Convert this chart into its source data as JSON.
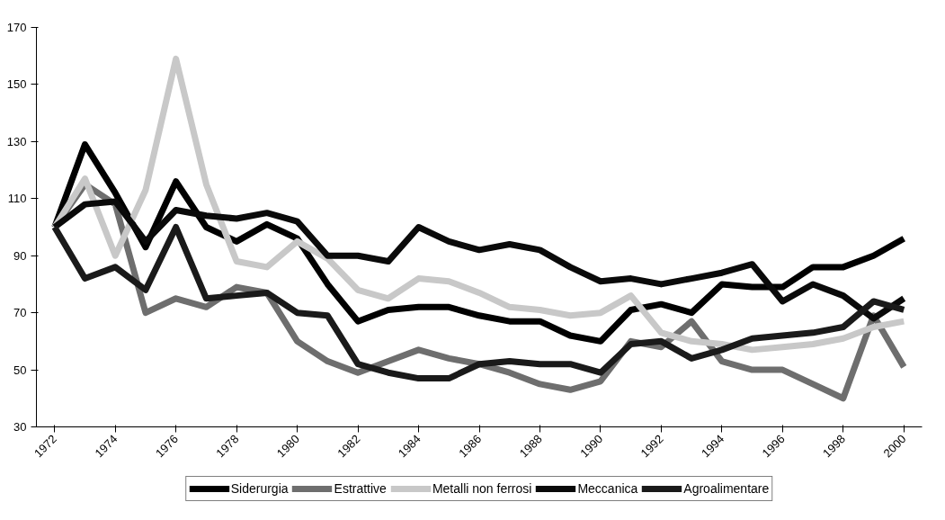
{
  "chart_data": {
    "type": "line",
    "x": [
      1972,
      1973,
      1974,
      1975,
      1976,
      1977,
      1978,
      1979,
      1980,
      1981,
      1982,
      1983,
      1984,
      1985,
      1986,
      1987,
      1988,
      1989,
      1990,
      1991,
      1992,
      1993,
      1994,
      1995,
      1996,
      1997,
      1998,
      1999,
      2000
    ],
    "series": [
      {
        "name": "Siderurgia",
        "color": "#000000",
        "values": [
          100,
          129,
          112,
          93,
          116,
          100,
          95,
          101,
          96,
          80,
          67,
          71,
          72,
          72,
          69,
          67,
          67,
          62,
          60,
          71,
          73,
          70,
          80,
          79,
          79,
          86,
          86,
          90,
          96
        ]
      },
      {
        "name": "Estrattive",
        "color": "#6e6e6e",
        "values": [
          100,
          115,
          108,
          70,
          75,
          72,
          79,
          77,
          60,
          53,
          49,
          53,
          57,
          54,
          52,
          49,
          45,
          43,
          46,
          60,
          58,
          67,
          53,
          50,
          50,
          45,
          40,
          69,
          51
        ]
      },
      {
        "name": "Metalli non ferrosi",
        "color": "#c8c8c8",
        "values": [
          100,
          117,
          90,
          113,
          159,
          115,
          88,
          86,
          95,
          89,
          78,
          75,
          82,
          81,
          77,
          72,
          71,
          69,
          70,
          76,
          63,
          60,
          59,
          57,
          58,
          59,
          61,
          65,
          67
        ]
      },
      {
        "name": "Meccanica",
        "color": "#0a0a0a",
        "values": [
          100,
          108,
          109,
          95,
          106,
          104,
          103,
          105,
          102,
          90,
          90,
          88,
          100,
          95,
          92,
          94,
          92,
          86,
          81,
          82,
          80,
          82,
          84,
          87,
          74,
          80,
          76,
          68,
          75
        ]
      },
      {
        "name": "Agroalimentare",
        "color": "#1a1a1a",
        "values": [
          100,
          82,
          86,
          78,
          100,
          75,
          76,
          77,
          70,
          69,
          52,
          49,
          47,
          47,
          52,
          53,
          52,
          52,
          49,
          59,
          60,
          54,
          57,
          61,
          62,
          63,
          65,
          74,
          71
        ]
      }
    ],
    "xlim": [
      1971.4,
      2000.6
    ],
    "xticks": [
      1972,
      1974,
      1976,
      1978,
      1980,
      1982,
      1984,
      1986,
      1988,
      1990,
      1992,
      1994,
      1996,
      1998,
      2000
    ],
    "ylim": [
      30,
      170
    ],
    "yticks": [
      30,
      50,
      70,
      90,
      110,
      130,
      150,
      170
    ],
    "grid": false,
    "legend": "bottom",
    "line_style": "solid",
    "marker": "none"
  }
}
